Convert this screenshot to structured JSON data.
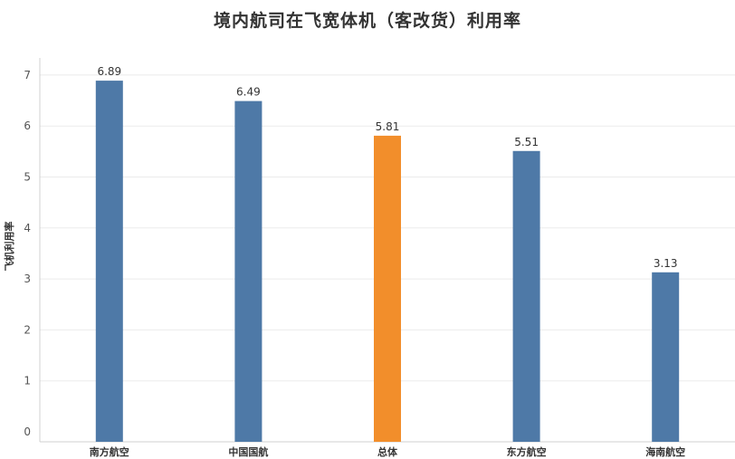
{
  "chart_data": {
    "type": "bar",
    "title": "境内航司在飞宽体机（客改货）利用率",
    "xlabel": "",
    "ylabel": "飞机利用率",
    "categories": [
      "南方航空",
      "中国国航",
      "总体",
      "东方航空",
      "海南航空"
    ],
    "values": [
      6.89,
      6.49,
      5.81,
      5.51,
      3.13
    ],
    "data_labels": [
      "6.89",
      "6.49",
      "5.81",
      "5.51",
      "3.13"
    ],
    "yticks": [
      0,
      1,
      2,
      3,
      4,
      5,
      6,
      7
    ],
    "ylim": [
      0,
      7.5
    ],
    "grid": true,
    "legend": "none",
    "colors": {
      "default": "#4e79a7",
      "highlight": "#f28e2b",
      "highlight_category": "总体"
    }
  }
}
